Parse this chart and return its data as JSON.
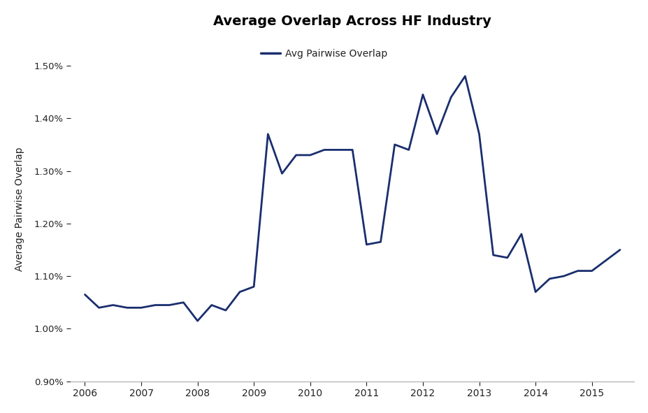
{
  "title": "Average Overlap Across HF Industry",
  "ylabel": "Average Pairwise Overlap",
  "legend_label": "Avg Pairwise Overlap",
  "line_color": "#1a2e6e",
  "line_width": 2.0,
  "background_color": "#ffffff",
  "text_color": "#222222",
  "ylim": [
    0.009,
    0.01555
  ],
  "yticks": [
    0.009,
    0.01,
    0.011,
    0.012,
    0.013,
    0.014,
    0.015
  ],
  "ytick_labels": [
    "0.90%",
    "1.00%",
    "1.10%",
    "1.20%",
    "1.30%",
    "1.40%",
    "1.50%"
  ],
  "x": [
    2006.0,
    2006.25,
    2006.5,
    2006.75,
    2007.0,
    2007.25,
    2007.5,
    2007.75,
    2008.0,
    2008.25,
    2008.5,
    2008.75,
    2009.0,
    2009.25,
    2009.5,
    2009.75,
    2010.0,
    2010.25,
    2010.5,
    2010.75,
    2011.0,
    2011.25,
    2011.5,
    2011.75,
    2012.0,
    2012.25,
    2012.5,
    2012.75,
    2013.0,
    2013.25,
    2013.5,
    2013.75,
    2014.0,
    2014.25,
    2014.5,
    2014.75,
    2015.0,
    2015.25,
    2015.5
  ],
  "y": [
    0.01065,
    0.0104,
    0.01045,
    0.0104,
    0.0104,
    0.01045,
    0.01045,
    0.0105,
    0.01015,
    0.01045,
    0.01035,
    0.0107,
    0.0108,
    0.0137,
    0.01295,
    0.0133,
    0.0133,
    0.0134,
    0.0134,
    0.0134,
    0.0116,
    0.01165,
    0.0135,
    0.0134,
    0.01445,
    0.0137,
    0.0144,
    0.0148,
    0.0137,
    0.0114,
    0.01135,
    0.0118,
    0.0107,
    0.01095,
    0.011,
    0.0111,
    0.0111,
    0.0113,
    0.0115
  ],
  "xticks": [
    2006,
    2007,
    2008,
    2009,
    2010,
    2011,
    2012,
    2013,
    2014,
    2015
  ],
  "xlim": [
    2005.75,
    2015.75
  ]
}
